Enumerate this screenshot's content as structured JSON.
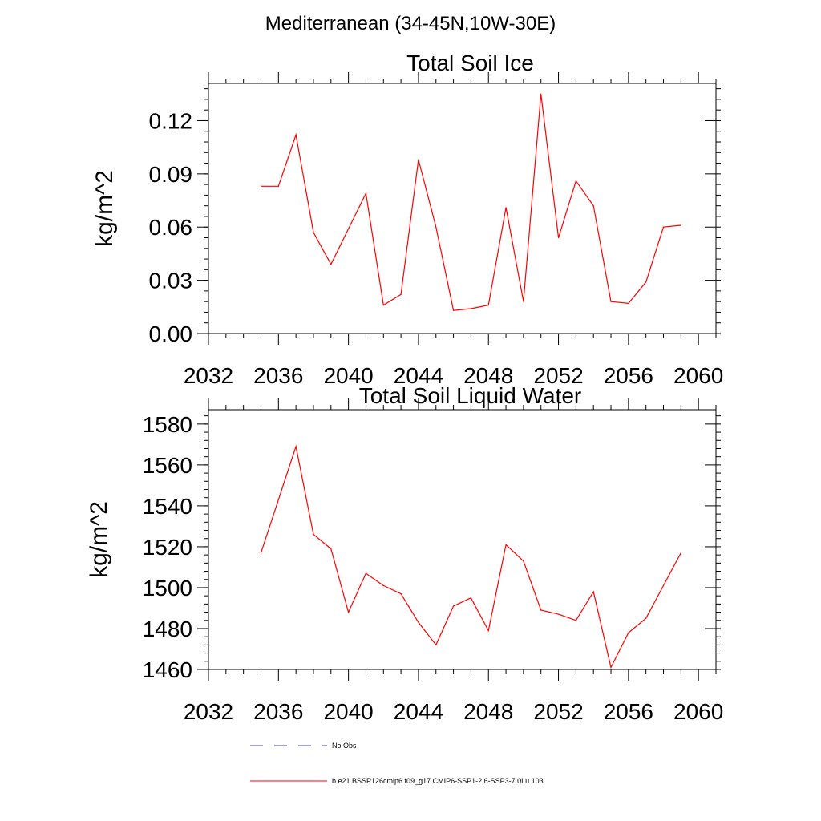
{
  "suptitle": "Mediterranean (34-45N,10W-30E)",
  "legend": [
    {
      "label": "No Obs",
      "color": "#4a4aa0",
      "dash": true
    },
    {
      "label": "b.e21.BSSP126cmip6.f09_g17.CMIP6-SSP1-2.6-SSP3-7.0Lu.103",
      "color": "#ff0000",
      "dash": false
    }
  ],
  "chart_data": [
    {
      "type": "line",
      "title": "Total Soil Ice",
      "xlabel": "",
      "ylabel": "kg/m^2",
      "xlim": [
        2032,
        2061
      ],
      "ylim": [
        0.0,
        0.141
      ],
      "xticks": [
        2032,
        2036,
        2040,
        2044,
        2048,
        2052,
        2056,
        2060
      ],
      "yticks": [
        0.0,
        0.03,
        0.06,
        0.09,
        0.12
      ],
      "ytick_labels": [
        "0.00",
        "0.03",
        "0.06",
        "0.09",
        "0.12"
      ],
      "series": [
        {
          "color": "#ff0000",
          "x": [
            2035,
            2036,
            2037,
            2038,
            2039,
            2040,
            2041,
            2042,
            2043,
            2044,
            2045,
            2046,
            2047,
            2048,
            2049,
            2050,
            2051,
            2052,
            2053,
            2054,
            2055,
            2056,
            2057,
            2058,
            2059
          ],
          "y": [
            0.083,
            0.083,
            0.112,
            0.057,
            0.039,
            0.059,
            0.079,
            0.016,
            0.022,
            0.098,
            0.06,
            0.013,
            0.014,
            0.016,
            0.071,
            0.018,
            0.135,
            0.054,
            0.086,
            0.072,
            0.018,
            0.017,
            0.029,
            0.06,
            0.061
          ]
        }
      ]
    },
    {
      "type": "line",
      "title": "Total Soil Liquid Water",
      "xlabel": "",
      "ylabel": "kg/m^2",
      "xlim": [
        2032,
        2061
      ],
      "ylim": [
        1460,
        1587
      ],
      "xticks": [
        2032,
        2036,
        2040,
        2044,
        2048,
        2052,
        2056,
        2060
      ],
      "yticks": [
        1460,
        1480,
        1500,
        1520,
        1540,
        1560,
        1580
      ],
      "ytick_labels": [
        "1460",
        "1480",
        "1500",
        "1520",
        "1540",
        "1560",
        "1580"
      ],
      "series": [
        {
          "color": "#ff0000",
          "x": [
            2035,
            2036,
            2037,
            2038,
            2039,
            2040,
            2041,
            2042,
            2043,
            2044,
            2045,
            2046,
            2047,
            2048,
            2049,
            2050,
            2051,
            2052,
            2053,
            2054,
            2055,
            2056,
            2057,
            2058,
            2059
          ],
          "y": [
            1517,
            1543,
            1569,
            1526,
            1519,
            1488,
            1507,
            1501,
            1497,
            1483,
            1472,
            1491,
            1495,
            1479,
            1521,
            1513,
            1489,
            1487,
            1484,
            1498,
            1461,
            1478,
            1485,
            1501,
            1517
          ]
        }
      ]
    }
  ]
}
